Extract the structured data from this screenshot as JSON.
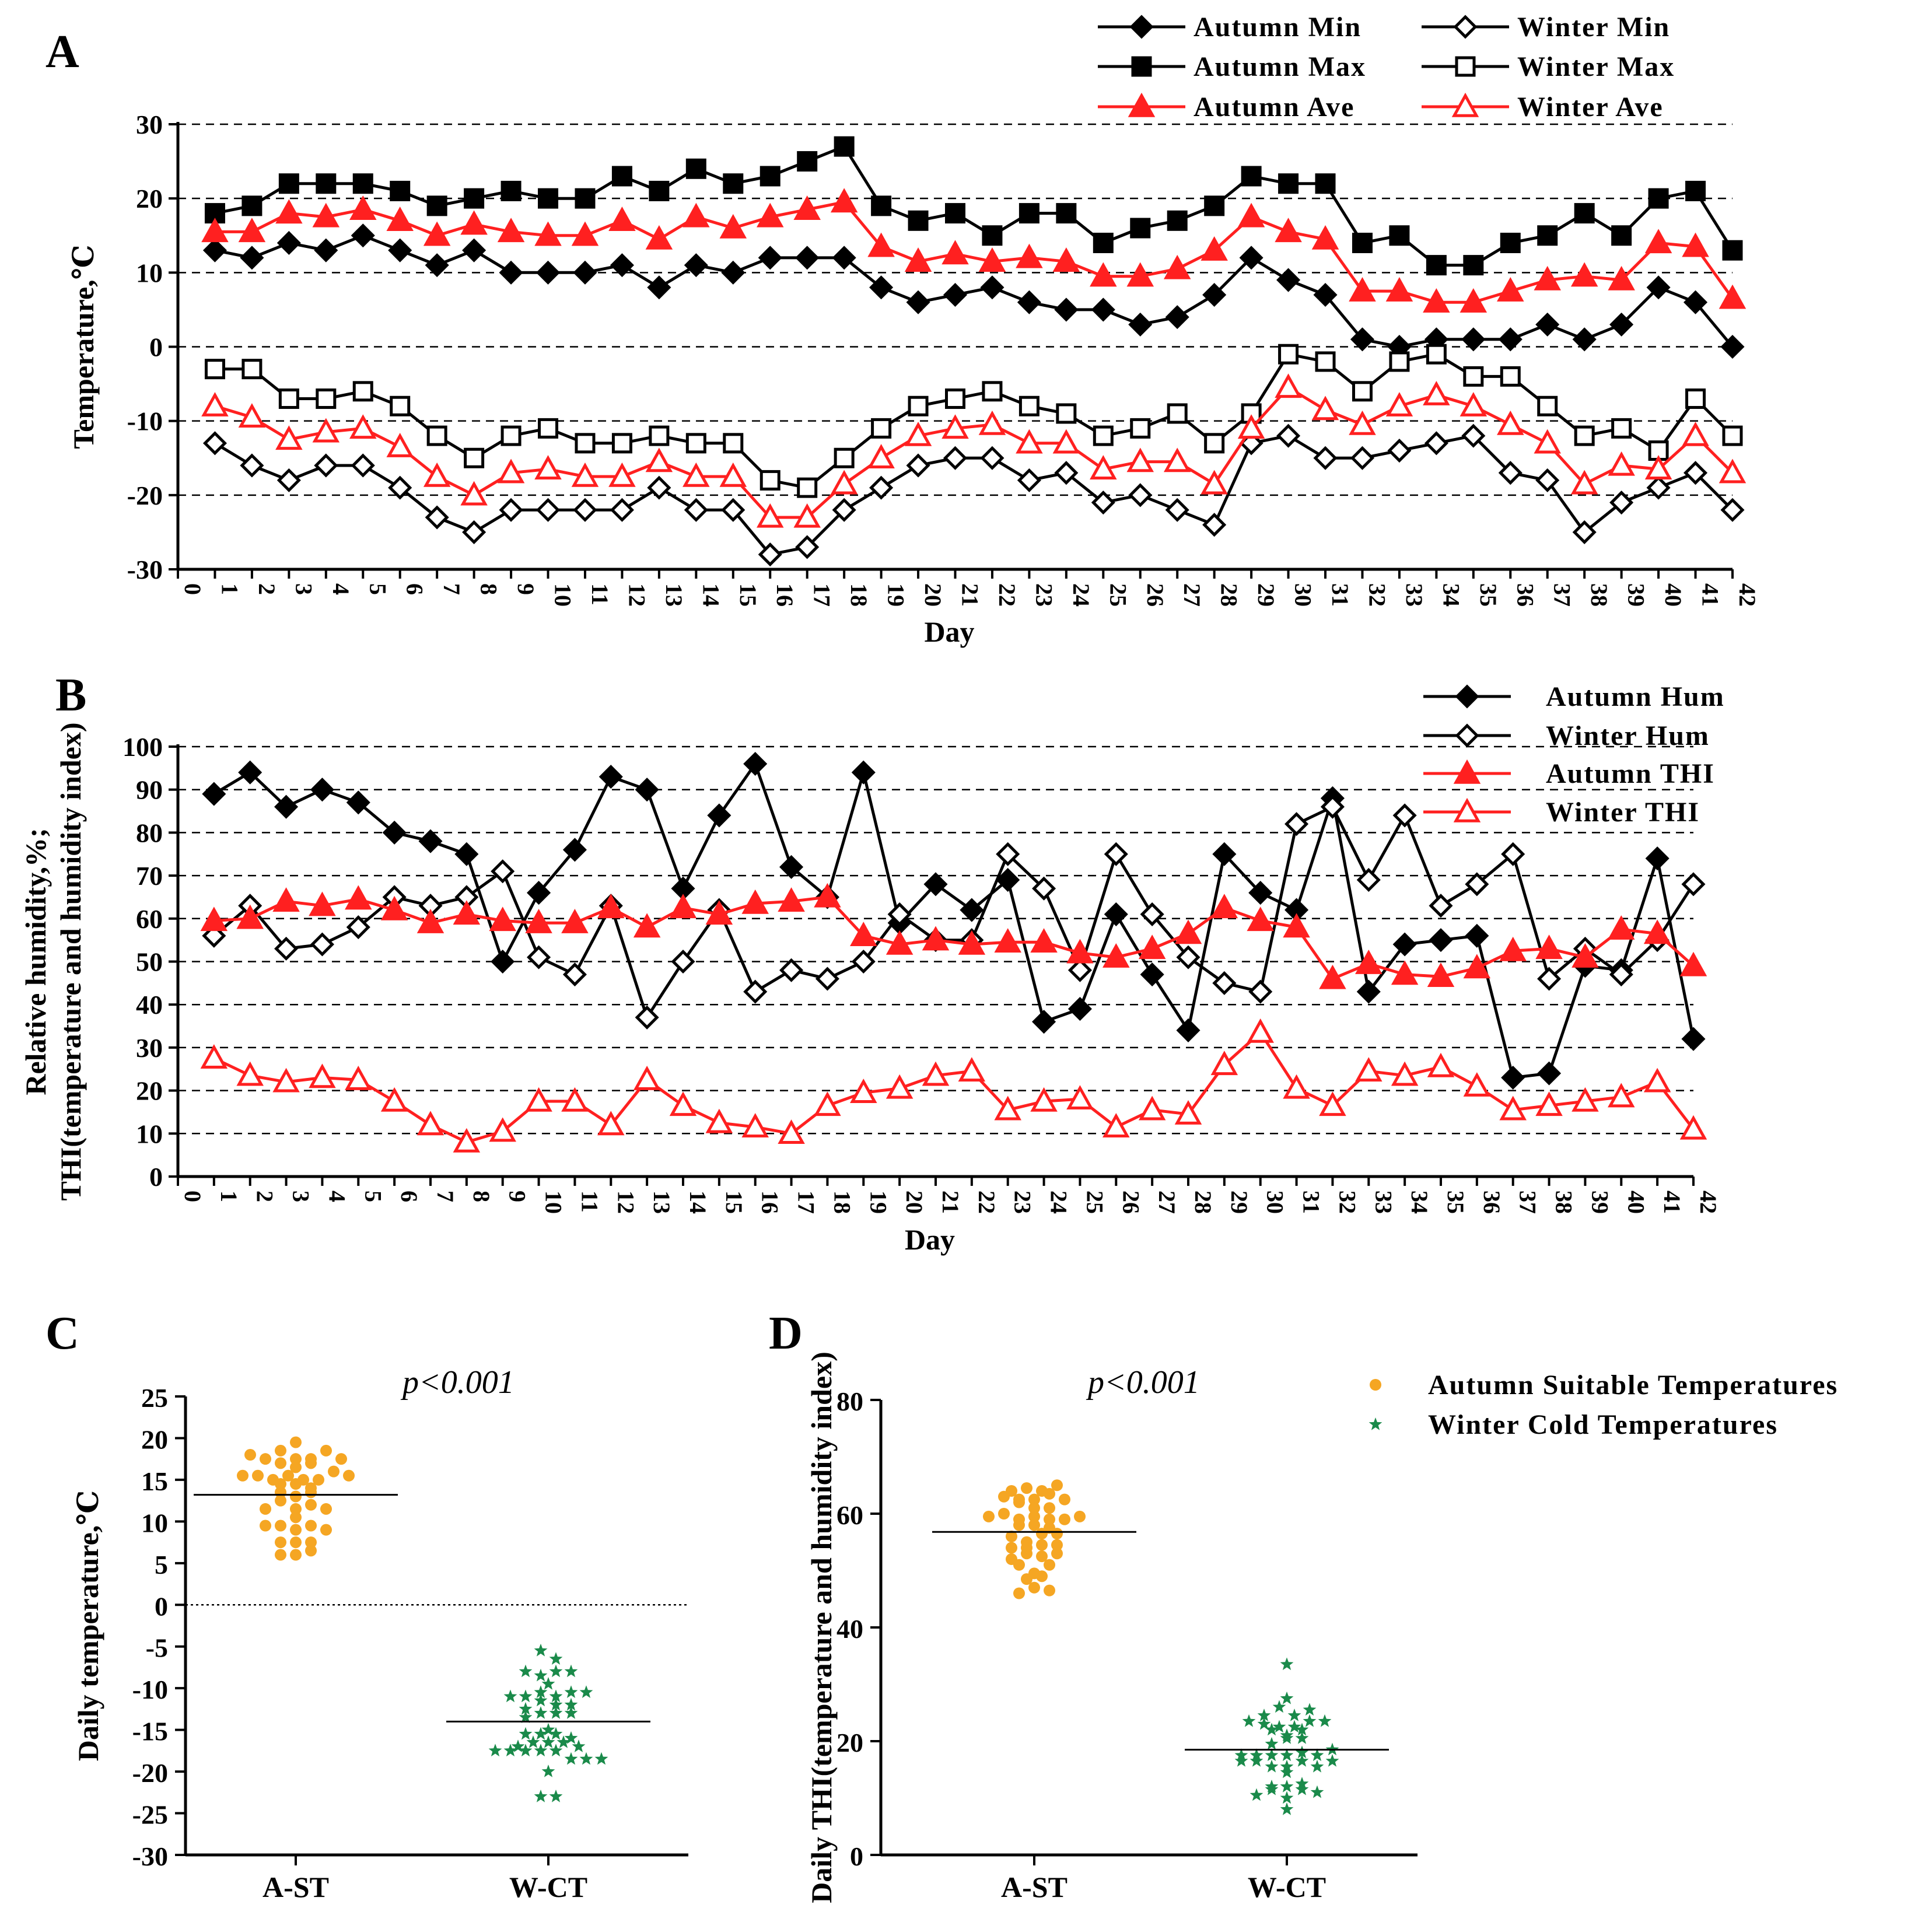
{
  "chart_data": [
    {
      "panel": "A",
      "type": "line",
      "xlabel": "Day",
      "ylabel": "Temperature,℃",
      "ylim": [
        -30,
        30
      ],
      "yticks": [
        -30,
        -20,
        -10,
        0,
        10,
        20,
        30
      ],
      "xlim": [
        0,
        42
      ],
      "x": [
        1,
        2,
        3,
        4,
        5,
        6,
        7,
        8,
        9,
        10,
        11,
        12,
        13,
        14,
        15,
        16,
        17,
        18,
        19,
        20,
        21,
        22,
        23,
        24,
        25,
        26,
        27,
        28,
        29,
        30,
        31,
        32,
        33,
        34,
        35,
        36,
        37,
        38,
        39,
        40,
        41,
        42
      ],
      "grid": "horizontal dashed",
      "legend": "top-right",
      "series": [
        {
          "name": "Autumn Min",
          "color": "#000000",
          "marker": "diamond-filled",
          "values": [
            13,
            12,
            14,
            13,
            15,
            13,
            11,
            13,
            10,
            10,
            10,
            11,
            8,
            11,
            10,
            12,
            12,
            12,
            8,
            6,
            7,
            8,
            6,
            5,
            5,
            3,
            4,
            7,
            12,
            9,
            7,
            1,
            0,
            1,
            1,
            1,
            3,
            1,
            3,
            8,
            6,
            0
          ]
        },
        {
          "name": "Autumn Max",
          "color": "#000000",
          "marker": "square-filled",
          "values": [
            18,
            19,
            22,
            22,
            22,
            21,
            19,
            20,
            21,
            20,
            20,
            23,
            21,
            24,
            22,
            23,
            25,
            27,
            19,
            17,
            18,
            15,
            18,
            18,
            14,
            16,
            17,
            19,
            23,
            22,
            22,
            14,
            15,
            11,
            11,
            14,
            15,
            18,
            15,
            20,
            21,
            13
          ]
        },
        {
          "name": "Autumn Ave",
          "color": "#ff2020",
          "marker": "triangle-filled",
          "values": [
            15.5,
            15.5,
            18,
            17.5,
            18.5,
            17,
            15,
            16.5,
            15.5,
            15,
            15,
            17,
            14.5,
            17.5,
            16,
            17.5,
            18.5,
            19.5,
            13.5,
            11.5,
            12.5,
            11.5,
            12,
            11.5,
            9.5,
            9.5,
            10.5,
            13,
            17.5,
            15.5,
            14.5,
            7.5,
            7.5,
            6,
            6,
            7.5,
            9,
            9.5,
            9,
            14,
            13.5,
            6.5
          ]
        },
        {
          "name": "Winter Min",
          "color": "#000000",
          "marker": "diamond-open",
          "values": [
            -13,
            -16,
            -18,
            -16,
            -16,
            -19,
            -23,
            -25,
            -22,
            -22,
            -22,
            -22,
            -19,
            -22,
            -22,
            -28,
            -27,
            -22,
            -19,
            -16,
            -15,
            -15,
            -18,
            -17,
            -21,
            -20,
            -22,
            -24,
            -13,
            -12,
            -15,
            -15,
            -14,
            -13,
            -12,
            -17,
            -18,
            -25,
            -21,
            -19,
            -17,
            -22
          ]
        },
        {
          "name": "Winter Max",
          "color": "#000000",
          "marker": "square-open",
          "values": [
            -3,
            -3,
            -7,
            -7,
            -6,
            -8,
            -12,
            -15,
            -12,
            -11,
            -13,
            -13,
            -12,
            -13,
            -13,
            -18,
            -19,
            -15,
            -11,
            -8,
            -7,
            -6,
            -8,
            -9,
            -12,
            -11,
            -9,
            -13,
            -9,
            -1,
            -2,
            -6,
            -2,
            -1,
            -4,
            -4,
            -8,
            -12,
            -11,
            -14,
            -7,
            -12
          ]
        },
        {
          "name": "Winter Ave",
          "color": "#ff2020",
          "marker": "triangle-open",
          "values": [
            -8,
            -9.5,
            -12.5,
            -11.5,
            -11,
            -13.5,
            -17.5,
            -20,
            -17,
            -16.5,
            -17.5,
            -17.5,
            -15.5,
            -17.5,
            -17.5,
            -23,
            -23,
            -18.5,
            -15,
            -12,
            -11,
            -10.5,
            -13,
            -13,
            -16.5,
            -15.5,
            -15.5,
            -18.5,
            -11,
            -5.5,
            -8.5,
            -10.5,
            -8,
            -6.5,
            -8,
            -10.5,
            -13,
            -18.5,
            -16,
            -16.5,
            -12,
            -17
          ]
        }
      ]
    },
    {
      "panel": "B",
      "type": "line",
      "xlabel": "Day",
      "ylabel_lines": [
        "Relative humidity,%;",
        "THI(temperature and humidity index)"
      ],
      "ylim": [
        0,
        100
      ],
      "yticks": [
        0,
        10,
        20,
        30,
        40,
        50,
        60,
        70,
        80,
        90,
        100
      ],
      "xlim": [
        0,
        42
      ],
      "x": [
        1,
        2,
        3,
        4,
        5,
        6,
        7,
        8,
        9,
        10,
        11,
        12,
        13,
        14,
        15,
        16,
        17,
        18,
        19,
        20,
        21,
        22,
        23,
        24,
        25,
        26,
        27,
        28,
        29,
        30,
        31,
        32,
        33,
        34,
        35,
        36,
        37,
        38,
        39,
        40,
        41,
        42
      ],
      "grid": "horizontal dashed",
      "legend": "top-right",
      "series": [
        {
          "name": "Autumn Hum",
          "color": "#000000",
          "marker": "diamond-filled",
          "values": [
            89,
            94,
            86,
            90,
            87,
            80,
            78,
            75,
            50,
            66,
            76,
            93,
            90,
            67,
            84,
            96,
            72,
            65,
            94,
            59,
            68,
            62,
            69,
            36,
            39,
            61,
            47,
            34,
            75,
            66,
            62,
            88,
            43,
            54,
            55,
            56,
            23,
            24,
            49,
            48,
            74,
            32
          ]
        },
        {
          "name": "Winter Hum",
          "color": "#000000",
          "marker": "diamond-open",
          "values": [
            56,
            63,
            53,
            54,
            58,
            65,
            63,
            65,
            71,
            51,
            47,
            63,
            37,
            50,
            62,
            43,
            48,
            46,
            50,
            61,
            55,
            55,
            75,
            67,
            48,
            75,
            61,
            51,
            45,
            43,
            82,
            86,
            69,
            84,
            63,
            68,
            75,
            46,
            53,
            47,
            55,
            68
          ]
        },
        {
          "name": "Autumn THI",
          "color": "#ff2020",
          "marker": "triangle-filled",
          "values": [
            59.5,
            60,
            64,
            63,
            64.5,
            62,
            59,
            61,
            59.5,
            59,
            59,
            62.5,
            58,
            62.5,
            61,
            63.5,
            64,
            65,
            56,
            54,
            55,
            54,
            54.5,
            54.5,
            52,
            51,
            53,
            56.5,
            62.5,
            59.5,
            58,
            46,
            49.5,
            47,
            46.5,
            48.5,
            52.5,
            53,
            51,
            57.5,
            56.5,
            49
          ]
        },
        {
          "name": "Winter THI",
          "color": "#ff2020",
          "marker": "triangle-open",
          "values": [
            27.5,
            23.5,
            22,
            23,
            22.5,
            17.5,
            12,
            8,
            10.5,
            17.5,
            17.5,
            12,
            22.5,
            16.5,
            12.5,
            11.5,
            10,
            16.5,
            19.5,
            20.5,
            23.5,
            24.5,
            15.5,
            17.5,
            18,
            11.5,
            15.5,
            14.5,
            26,
            33.5,
            20.5,
            16.5,
            24.5,
            23.5,
            25.5,
            21,
            15.5,
            16.5,
            17.5,
            18.5,
            22,
            11
          ]
        }
      ]
    },
    {
      "panel": "C",
      "type": "scatter",
      "annotation": "p<0.001",
      "ylabel": "Daily temperature,℃",
      "ylim": [
        -30,
        25
      ],
      "yticks": [
        -30,
        -25,
        -20,
        -15,
        -10,
        -5,
        0,
        5,
        10,
        15,
        20,
        25
      ],
      "categories": [
        "A-ST",
        "W-CT"
      ],
      "reference_line": 0,
      "groups": [
        {
          "name": "A-ST",
          "color": "#f5a623",
          "marker": "circle",
          "mean": 13.2,
          "values": [
            15.5,
            15.5,
            18,
            17.5,
            18.5,
            17,
            15,
            16.5,
            15.5,
            15,
            15,
            17,
            14.5,
            17.5,
            16,
            17.5,
            18.5,
            19.5,
            13.5,
            11.5,
            12.5,
            11.5,
            12,
            11.5,
            9.5,
            9.5,
            10.5,
            13,
            17.5,
            15.5,
            14.5,
            7.5,
            7.5,
            6,
            6,
            7.5,
            9,
            9.5,
            9,
            14,
            13.5,
            6.5
          ]
        },
        {
          "name": "W-CT",
          "color": "#1a8a4a",
          "marker": "star",
          "mean": -14,
          "values": [
            -8,
            -9.5,
            -12.5,
            -11.5,
            -11,
            -13.5,
            -17.5,
            -20,
            -17,
            -16.5,
            -17.5,
            -17.5,
            -15.5,
            -17.5,
            -17.5,
            -23,
            -23,
            -18.5,
            -15,
            -12,
            -11,
            -10.5,
            -13,
            -13,
            -16.5,
            -15.5,
            -15.5,
            -18.5,
            -11,
            -5.5,
            -8.5,
            -10.5,
            -8,
            -6.5,
            -8,
            -10.5,
            -13,
            -18.5,
            -16,
            -16.5,
            -12,
            -17
          ]
        }
      ]
    },
    {
      "panel": "D",
      "type": "scatter",
      "annotation": "p<0.001",
      "ylabel": "Daily THI(temperature and humidity index)",
      "ylim": [
        0,
        80
      ],
      "yticks": [
        0,
        20,
        40,
        60,
        80
      ],
      "categories": [
        "A-ST",
        "W-CT"
      ],
      "legend": "top-right",
      "legend_entries": [
        "Autumn Suitable Temperatures",
        "Winter Cold Temperatures"
      ],
      "groups": [
        {
          "name": "A-ST",
          "color": "#f5a623",
          "marker": "circle",
          "mean": 56.8,
          "values": [
            59.5,
            60,
            64,
            63,
            64.5,
            62,
            59,
            61,
            59.5,
            59,
            59,
            62.5,
            58,
            62.5,
            61,
            63.5,
            64,
            65,
            56,
            54,
            55,
            54,
            54.5,
            54.5,
            52,
            51,
            53,
            56.5,
            62.5,
            59.5,
            58,
            46,
            49.5,
            47,
            46.5,
            48.5,
            52.5,
            53,
            51,
            57.5,
            56.5,
            49
          ]
        },
        {
          "name": "W-CT",
          "color": "#1a8a4a",
          "marker": "star",
          "mean": 18.5,
          "values": [
            27.5,
            23.5,
            22,
            23,
            22.5,
            17.5,
            12,
            8,
            10.5,
            17.5,
            17.5,
            12,
            22.5,
            16.5,
            12.5,
            11.5,
            10,
            16.5,
            19.5,
            20.5,
            23.5,
            24.5,
            15.5,
            17.5,
            18,
            11.5,
            15.5,
            14.5,
            26,
            33.5,
            20.5,
            16.5,
            24.5,
            23.5,
            25.5,
            21,
            15.5,
            16.5,
            17.5,
            18.5,
            22,
            11
          ]
        }
      ]
    }
  ]
}
